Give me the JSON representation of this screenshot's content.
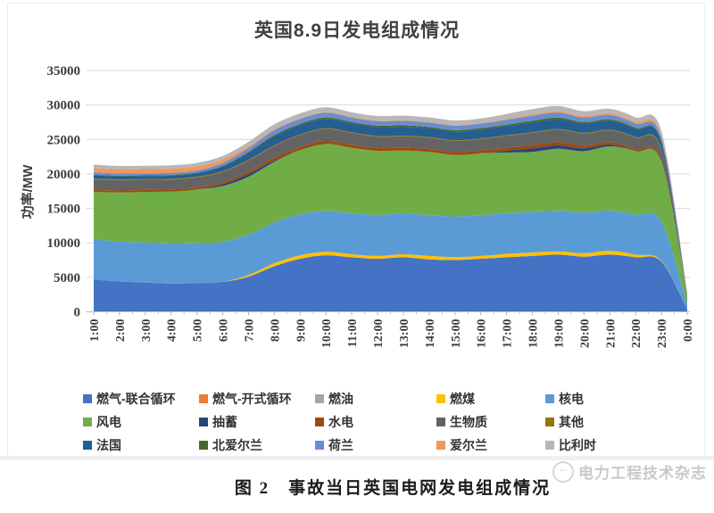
{
  "figure": {
    "caption": "图 2　事故当日英国电网发电组成情况",
    "watermark": "电力工程技术杂志"
  },
  "chart_data": {
    "type": "area",
    "stacked": true,
    "title": "英国8.9日发电组成情况",
    "ylabel": "功率/MW",
    "xlabel": "",
    "ylim": [
      0,
      35000
    ],
    "y_ticks": [
      0,
      5000,
      10000,
      15000,
      20000,
      25000,
      30000,
      35000
    ],
    "grid": true,
    "legend_position": "bottom",
    "x": [
      "1:00",
      "2:00",
      "3:00",
      "4:00",
      "5:00",
      "6:00",
      "7:00",
      "8:00",
      "9:00",
      "10:00",
      "11:00",
      "12:00",
      "13:00",
      "14:00",
      "15:00",
      "16:00",
      "17:00",
      "18:00",
      "19:00",
      "20:00",
      "21:00",
      "22:00",
      "23:00",
      "0:00"
    ],
    "series": [
      {
        "name": "燃气-联合循环",
        "color": "#4472C4",
        "values": [
          4700,
          4400,
          4250,
          4100,
          4150,
          4350,
          5100,
          6600,
          7700,
          8200,
          7900,
          7700,
          7900,
          7600,
          7500,
          7700,
          7900,
          8100,
          8300,
          8000,
          8300,
          7900,
          7300,
          300
        ]
      },
      {
        "name": "燃气-开式循环",
        "color": "#ED7D31",
        "values": [
          0,
          0,
          0,
          0,
          0,
          0,
          0,
          0,
          0,
          0,
          0,
          0,
          0,
          0,
          0,
          0,
          0,
          0,
          0,
          0,
          0,
          0,
          0,
          0
        ]
      },
      {
        "name": "燃油",
        "color": "#A5A5A5",
        "values": [
          0,
          0,
          0,
          0,
          0,
          0,
          0,
          0,
          0,
          0,
          0,
          0,
          0,
          0,
          0,
          0,
          0,
          0,
          0,
          0,
          0,
          0,
          0,
          0
        ]
      },
      {
        "name": "燃煤",
        "color": "#FFC000",
        "values": [
          0,
          0,
          0,
          0,
          0,
          0,
          250,
          450,
          500,
          500,
          450,
          400,
          450,
          500,
          450,
          400,
          500,
          500,
          450,
          500,
          550,
          400,
          100,
          0
        ]
      },
      {
        "name": "核电",
        "color": "#5B9BD5",
        "values": [
          5800,
          5800,
          5800,
          5800,
          5800,
          5800,
          5850,
          5900,
          5950,
          5950,
          5950,
          5950,
          5950,
          5900,
          5900,
          5900,
          5900,
          5900,
          5900,
          5900,
          5850,
          5800,
          5750,
          800
        ]
      },
      {
        "name": "风电",
        "color": "#70AD47",
        "values": [
          6900,
          7100,
          7350,
          7550,
          7800,
          8100,
          8400,
          8800,
          9300,
          9700,
          9500,
          9300,
          9100,
          9200,
          8900,
          9000,
          8800,
          8700,
          9000,
          8900,
          9300,
          9200,
          8600,
          1300
        ]
      },
      {
        "name": "抽蓄",
        "color": "#264478",
        "values": [
          0,
          0,
          0,
          0,
          0,
          250,
          400,
          200,
          0,
          0,
          0,
          0,
          0,
          0,
          0,
          0,
          250,
          500,
          500,
          400,
          250,
          0,
          0,
          0
        ]
      },
      {
        "name": "水电",
        "color": "#9E480E",
        "values": [
          300,
          300,
          300,
          300,
          300,
          300,
          350,
          400,
          430,
          430,
          430,
          400,
          400,
          400,
          400,
          400,
          450,
          450,
          450,
          400,
          350,
          300,
          250,
          0
        ]
      },
      {
        "name": "生物质",
        "color": "#636363",
        "values": [
          1500,
          1500,
          1450,
          1450,
          1450,
          1500,
          1600,
          1700,
          1750,
          1750,
          1700,
          1650,
          1650,
          1650,
          1650,
          1650,
          1700,
          1800,
          1800,
          1750,
          1700,
          1650,
          1550,
          150
        ]
      },
      {
        "name": "其他",
        "color": "#997300",
        "values": [
          100,
          100,
          100,
          100,
          100,
          100,
          100,
          100,
          100,
          100,
          100,
          100,
          100,
          100,
          100,
          100,
          100,
          100,
          100,
          100,
          100,
          100,
          100,
          0
        ]
      },
      {
        "name": "法国",
        "color": "#255E91",
        "values": [
          500,
          450,
          450,
          450,
          500,
          700,
          1000,
          1300,
          1350,
          1350,
          1300,
          1300,
          1300,
          1250,
          1250,
          1300,
          1350,
          1400,
          1400,
          1350,
          1300,
          1200,
          1000,
          100
        ]
      },
      {
        "name": "北爱尔兰",
        "color": "#43682B",
        "values": [
          100,
          100,
          100,
          100,
          100,
          100,
          150,
          200,
          200,
          200,
          200,
          200,
          200,
          200,
          200,
          200,
          200,
          250,
          250,
          200,
          200,
          150,
          100,
          0
        ]
      },
      {
        "name": "荷兰",
        "color": "#698ED0",
        "values": [
          350,
          300,
          300,
          300,
          300,
          400,
          550,
          700,
          700,
          700,
          650,
          650,
          650,
          650,
          650,
          650,
          700,
          750,
          750,
          700,
          650,
          600,
          500,
          50
        ]
      },
      {
        "name": "爱尔兰",
        "color": "#F1975A",
        "values": [
          600,
          600,
          600,
          600,
          600,
          500,
          300,
          150,
          100,
          100,
          100,
          100,
          100,
          100,
          100,
          100,
          150,
          200,
          200,
          200,
          250,
          300,
          400,
          0
        ]
      },
      {
        "name": "比利时",
        "color": "#B7B7B7",
        "values": [
          500,
          500,
          500,
          500,
          500,
          500,
          600,
          700,
          700,
          700,
          650,
          650,
          650,
          650,
          650,
          650,
          700,
          750,
          750,
          700,
          650,
          600,
          550,
          50
        ]
      }
    ]
  }
}
